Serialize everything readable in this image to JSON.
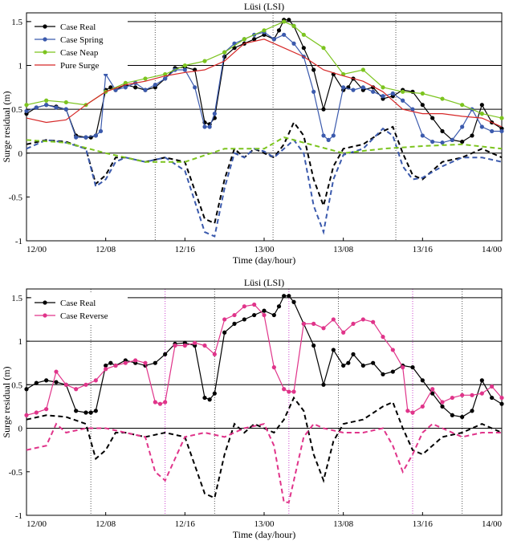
{
  "chart_data": [
    {
      "type": "line",
      "title": "Lüsi (LSI)",
      "xlabel": "Time (day/hour)",
      "ylabel": "Surge residual (m)",
      "xlim": [
        0,
        48
      ],
      "ylim": [
        -1,
        1.6
      ],
      "x_ticks": [
        0,
        8,
        16,
        24,
        32,
        40,
        48
      ],
      "x_tick_labels": [
        "12/00",
        "12/08",
        "12/16",
        "13/00",
        "13/08",
        "13/16",
        "14/00"
      ],
      "y_ticks": [
        -1,
        -0.5,
        0,
        0.5,
        1,
        1.5
      ],
      "y_tick_labels": [
        "-1",
        "-0.5",
        "0",
        "0.5",
        "1",
        "1.5"
      ],
      "grid": "horizontal lines at 0.5, 1, 1.5 and 0",
      "vertical_markers": [
        {
          "x": 13,
          "color": "#555555"
        },
        {
          "x": 24.9,
          "color": "#555555"
        },
        {
          "x": 37.3,
          "color": "#555555"
        }
      ],
      "legend_position": "top-left",
      "series": [
        {
          "name": "Case Real",
          "color": "#000000",
          "marker": "circle",
          "x": [
            0,
            1,
            2,
            3,
            4,
            5,
            6,
            6.5,
            7,
            8,
            8.5,
            9,
            10,
            11,
            12,
            13,
            14,
            15,
            16,
            17,
            18,
            18.5,
            19,
            20,
            21,
            22,
            23,
            24,
            25,
            25.5,
            26,
            26.5,
            27,
            28,
            29,
            30,
            31,
            32,
            32.5,
            33,
            34,
            35,
            36,
            37,
            38,
            39,
            40,
            41,
            42,
            43,
            44,
            45,
            46,
            47,
            48
          ],
          "y": [
            0.45,
            0.52,
            0.55,
            0.53,
            0.5,
            0.2,
            0.18,
            0.18,
            0.2,
            0.72,
            0.75,
            0.72,
            0.78,
            0.75,
            0.72,
            0.75,
            0.85,
            0.97,
            0.98,
            0.95,
            0.35,
            0.33,
            0.4,
            1.1,
            1.2,
            1.25,
            1.3,
            1.35,
            1.3,
            1.4,
            1.52,
            1.52,
            1.45,
            1.2,
            0.95,
            0.5,
            0.9,
            0.72,
            0.75,
            0.85,
            0.72,
            0.75,
            0.62,
            0.65,
            0.72,
            0.7,
            0.55,
            0.4,
            0.25,
            0.15,
            0.13,
            0.2,
            0.55,
            0.35,
            0.28
          ]
        },
        {
          "name": "Case Spring",
          "color": "#3b5aad",
          "marker": "circle",
          "x": [
            0,
            1,
            2,
            3,
            4,
            5,
            6,
            7,
            7.5,
            8,
            9,
            10,
            11,
            12,
            13,
            14,
            15,
            16,
            17,
            18,
            18.5,
            19,
            20,
            21,
            22,
            23,
            24,
            25,
            26,
            27,
            28,
            29,
            30,
            30.5,
            31,
            32,
            33,
            34,
            35,
            36,
            37,
            38,
            39,
            40,
            41,
            42,
            43,
            44,
            45,
            46,
            47,
            48
          ],
          "y": [
            0.48,
            0.52,
            0.55,
            0.52,
            0.5,
            0.18,
            0.18,
            0.2,
            0.25,
            0.9,
            0.72,
            0.75,
            0.8,
            0.72,
            0.78,
            0.85,
            0.95,
            0.95,
            0.75,
            0.3,
            0.3,
            0.45,
            1.15,
            1.25,
            1.3,
            1.35,
            1.38,
            1.3,
            1.35,
            1.25,
            1.1,
            0.7,
            0.2,
            0.15,
            0.2,
            0.75,
            0.72,
            0.75,
            0.7,
            0.65,
            0.68,
            0.6,
            0.5,
            0.2,
            0.13,
            0.12,
            0.15,
            0.3,
            0.5,
            0.3,
            0.25,
            0.25
          ]
        },
        {
          "name": "Case Neap",
          "color": "#7cc41f",
          "marker": "circle",
          "x": [
            0,
            2,
            4,
            6,
            8,
            10,
            12,
            14,
            16,
            18,
            20,
            22,
            24,
            26,
            27,
            28,
            30,
            32,
            34,
            36,
            38,
            40,
            42,
            44,
            46,
            48
          ],
          "y": [
            0.55,
            0.6,
            0.58,
            0.55,
            0.7,
            0.8,
            0.85,
            0.9,
            1.0,
            1.05,
            1.15,
            1.3,
            1.4,
            1.5,
            1.45,
            1.35,
            1.2,
            0.9,
            0.95,
            0.75,
            0.7,
            0.68,
            0.62,
            0.55,
            0.45,
            0.4
          ]
        },
        {
          "name": "Pure Surge",
          "color": "#d62828",
          "marker": "none",
          "x": [
            0,
            2,
            4,
            6,
            8,
            10,
            12,
            14,
            16,
            18,
            20,
            22,
            24,
            25,
            26,
            28,
            30,
            32,
            34,
            36,
            38,
            40,
            42,
            44,
            46,
            48
          ],
          "y": [
            0.4,
            0.35,
            0.38,
            0.55,
            0.7,
            0.78,
            0.82,
            0.88,
            0.92,
            0.95,
            1.05,
            1.25,
            1.3,
            1.25,
            1.2,
            1.1,
            0.95,
            0.88,
            0.82,
            0.7,
            0.5,
            0.45,
            0.45,
            0.42,
            0.4,
            0.3
          ]
        },
        {
          "name": "",
          "color": "#000000",
          "marker": "none",
          "dashed": true,
          "x": [
            0,
            2,
            4,
            6,
            7,
            8,
            9,
            10,
            12,
            14,
            16,
            18,
            19,
            20,
            21,
            22,
            23,
            24,
            25,
            26,
            27,
            28,
            29,
            30,
            31,
            32,
            34,
            36,
            37,
            38,
            39,
            40,
            42,
            44,
            46,
            48
          ],
          "y": [
            0.1,
            0.15,
            0.13,
            0.05,
            -0.35,
            -0.25,
            -0.05,
            -0.05,
            -0.1,
            -0.05,
            -0.1,
            -0.75,
            -0.8,
            -0.3,
            0.05,
            -0.05,
            0.05,
            0.0,
            -0.05,
            0.1,
            0.35,
            0.2,
            -0.3,
            -0.6,
            -0.15,
            0.05,
            0.1,
            0.25,
            0.3,
            0.0,
            -0.25,
            -0.3,
            -0.1,
            -0.05,
            0.05,
            -0.05
          ]
        },
        {
          "name": "",
          "color": "#3b5aad",
          "marker": "none",
          "dashed": true,
          "x": [
            0,
            2,
            4,
            6,
            7,
            8,
            9,
            10,
            12,
            14,
            16,
            18,
            19,
            20,
            21,
            22,
            23,
            24,
            25,
            26,
            27,
            28,
            29,
            30,
            31,
            32,
            34,
            36,
            37,
            38,
            39,
            40,
            42,
            44,
            46,
            48
          ],
          "y": [
            0.05,
            0.15,
            0.12,
            0.05,
            -0.38,
            -0.3,
            -0.1,
            -0.05,
            -0.1,
            -0.05,
            -0.2,
            -0.9,
            -0.95,
            -0.4,
            0.0,
            -0.05,
            0.05,
            0.02,
            -0.05,
            0.05,
            0.15,
            0.0,
            -0.6,
            -0.9,
            -0.3,
            -0.02,
            0.05,
            0.28,
            0.2,
            -0.15,
            -0.3,
            -0.28,
            -0.15,
            -0.05,
            -0.05,
            -0.1
          ]
        },
        {
          "name": "",
          "color": "#7cc41f",
          "marker": "none",
          "dashed": true,
          "x": [
            0,
            4,
            8,
            12,
            16,
            20,
            24,
            26,
            28,
            32,
            36,
            40,
            44,
            48
          ],
          "y": [
            0.15,
            0.12,
            0.0,
            -0.1,
            -0.1,
            0.05,
            0.05,
            0.18,
            0.12,
            0.0,
            0.05,
            0.08,
            0.1,
            0.05
          ]
        }
      ]
    },
    {
      "type": "line",
      "title": "Lüsi (LSI)",
      "xlabel": "Time (day/hour)",
      "ylabel": "Surge residual (m)",
      "xlim": [
        0,
        48
      ],
      "ylim": [
        -1,
        1.6
      ],
      "x_ticks": [
        0,
        8,
        16,
        24,
        32,
        40,
        48
      ],
      "x_tick_labels": [
        "12/00",
        "12/08",
        "12/16",
        "13/00",
        "13/08",
        "13/16",
        "14/00"
      ],
      "y_ticks": [
        -1,
        -0.5,
        0,
        0.5,
        1,
        1.5
      ],
      "y_tick_labels": [
        "-1",
        "-0.5",
        "0",
        "0.5",
        "1",
        "1.5"
      ],
      "grid": "horizontal lines at 0.5, 1, 1.5 and 0",
      "vertical_markers": [
        {
          "x": 6.5,
          "color": "#555555"
        },
        {
          "x": 14,
          "color": "#cc44cc"
        },
        {
          "x": 19,
          "color": "#555555"
        },
        {
          "x": 26.5,
          "color": "#cc44cc"
        },
        {
          "x": 31.5,
          "color": "#555555"
        },
        {
          "x": 39,
          "color": "#cc44cc"
        },
        {
          "x": 44,
          "color": "#555555"
        }
      ],
      "legend_position": "top-left",
      "series": [
        {
          "name": "Case Real",
          "color": "#000000",
          "marker": "circle",
          "x": [
            0,
            1,
            2,
            3,
            4,
            5,
            6,
            6.5,
            7,
            8,
            8.5,
            9,
            10,
            11,
            12,
            13,
            14,
            15,
            16,
            17,
            18,
            18.5,
            19,
            20,
            21,
            22,
            23,
            24,
            25,
            25.5,
            26,
            26.5,
            27,
            28,
            29,
            30,
            31,
            32,
            32.5,
            33,
            34,
            35,
            36,
            37,
            38,
            39,
            40,
            41,
            42,
            43,
            44,
            45,
            46,
            47,
            48
          ],
          "y": [
            0.45,
            0.52,
            0.55,
            0.53,
            0.5,
            0.2,
            0.18,
            0.18,
            0.2,
            0.72,
            0.75,
            0.72,
            0.78,
            0.75,
            0.72,
            0.75,
            0.85,
            0.97,
            0.98,
            0.95,
            0.35,
            0.33,
            0.4,
            1.1,
            1.2,
            1.25,
            1.3,
            1.35,
            1.3,
            1.4,
            1.52,
            1.52,
            1.45,
            1.2,
            0.95,
            0.5,
            0.9,
            0.72,
            0.75,
            0.85,
            0.72,
            0.75,
            0.62,
            0.65,
            0.72,
            0.7,
            0.55,
            0.4,
            0.25,
            0.15,
            0.13,
            0.2,
            0.55,
            0.35,
            0.28
          ]
        },
        {
          "name": "Case Reverse",
          "color": "#e0348a",
          "marker": "circle",
          "x": [
            0,
            1,
            2,
            3,
            4,
            5,
            6,
            7,
            8,
            9,
            10,
            11,
            12,
            13,
            13.5,
            14,
            15,
            16,
            17,
            18,
            19,
            20,
            21,
            22,
            23,
            24,
            25,
            26,
            26.5,
            27,
            28,
            29,
            30,
            31,
            32,
            33,
            34,
            35,
            36,
            37,
            38,
            38.5,
            39,
            40,
            41,
            42,
            43,
            44,
            45,
            46,
            47,
            48
          ],
          "y": [
            0.15,
            0.18,
            0.22,
            0.65,
            0.5,
            0.45,
            0.5,
            0.55,
            0.68,
            0.72,
            0.75,
            0.78,
            0.75,
            0.3,
            0.28,
            0.3,
            0.95,
            0.95,
            0.98,
            0.95,
            0.85,
            1.25,
            1.3,
            1.4,
            1.42,
            1.3,
            0.7,
            0.45,
            0.42,
            0.42,
            1.2,
            1.2,
            1.15,
            1.25,
            1.1,
            1.2,
            1.25,
            1.22,
            1.05,
            0.9,
            0.7,
            0.2,
            0.18,
            0.25,
            0.45,
            0.3,
            0.35,
            0.38,
            0.38,
            0.4,
            0.48,
            0.35
          ]
        },
        {
          "name": "",
          "color": "#000000",
          "marker": "none",
          "dashed": true,
          "x": [
            0,
            2,
            4,
            6,
            7,
            8,
            9,
            10,
            12,
            14,
            16,
            18,
            19,
            20,
            21,
            22,
            23,
            24,
            25,
            26,
            27,
            28,
            29,
            30,
            31,
            32,
            34,
            36,
            37,
            38,
            39,
            40,
            42,
            44,
            46,
            48
          ],
          "y": [
            0.1,
            0.15,
            0.13,
            0.05,
            -0.35,
            -0.25,
            -0.05,
            -0.05,
            -0.1,
            -0.05,
            -0.1,
            -0.75,
            -0.8,
            -0.3,
            0.05,
            -0.05,
            0.05,
            0.0,
            -0.05,
            0.1,
            0.35,
            0.2,
            -0.3,
            -0.6,
            -0.15,
            0.05,
            0.1,
            0.25,
            0.3,
            0.0,
            -0.25,
            -0.3,
            -0.1,
            -0.05,
            0.05,
            -0.05
          ]
        },
        {
          "name": "",
          "color": "#e0348a",
          "marker": "none",
          "dashed": true,
          "x": [
            0,
            2,
            3,
            4,
            6,
            8,
            10,
            12,
            13,
            14,
            15,
            16,
            18,
            20,
            22,
            24,
            25,
            26,
            26.5,
            27,
            28,
            29,
            30,
            32,
            34,
            36,
            37,
            38,
            39,
            40,
            41,
            42,
            44,
            46,
            48
          ],
          "y": [
            -0.25,
            -0.2,
            0.05,
            -0.05,
            0.0,
            0.0,
            -0.05,
            -0.1,
            -0.5,
            -0.6,
            -0.35,
            -0.1,
            -0.05,
            -0.1,
            0.0,
            0.05,
            -0.2,
            -0.85,
            -0.85,
            -0.6,
            -0.1,
            0.05,
            0.0,
            -0.05,
            -0.05,
            0.0,
            -0.2,
            -0.5,
            -0.3,
            -0.05,
            0.05,
            0.0,
            -0.1,
            -0.05,
            -0.05
          ]
        }
      ]
    }
  ]
}
